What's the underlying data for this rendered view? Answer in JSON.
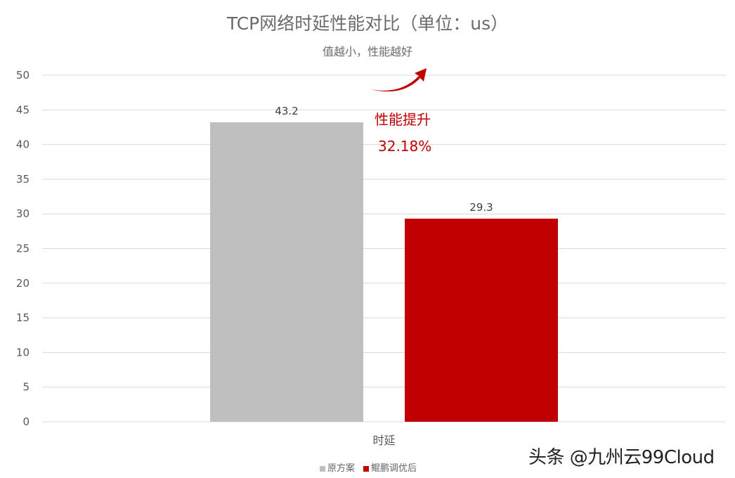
{
  "chart_data": {
    "type": "bar",
    "title": "TCP网络时延性能对比（单位：us）",
    "subtitle": "值越小，性能越好",
    "categories": [
      "时延"
    ],
    "series": [
      {
        "name": "原方案",
        "values": [
          43.2
        ],
        "color": "#bfbfbf"
      },
      {
        "name": "鲲鹏调优后",
        "values": [
          29.3
        ],
        "color": "#c00000"
      }
    ],
    "ylim": [
      0,
      50
    ],
    "yticks": [
      0,
      5,
      10,
      15,
      20,
      25,
      30,
      35,
      40,
      45,
      50
    ],
    "grid": true,
    "legend": "bottom",
    "annotation": {
      "line1": "性能提升",
      "line2": "32.18%",
      "color": "#c00000"
    }
  },
  "watermark": "头条 @九州云99Cloud"
}
